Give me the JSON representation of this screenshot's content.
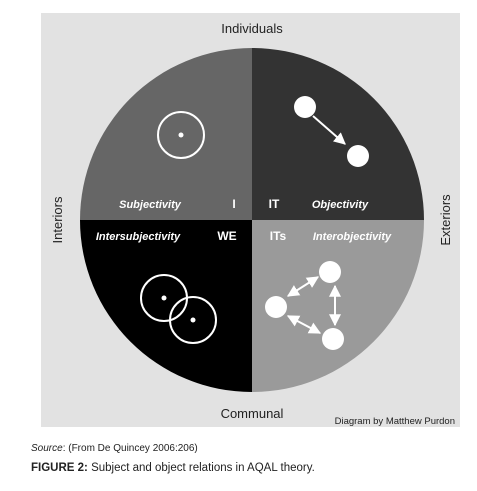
{
  "diagram": {
    "top_label": "Individuals",
    "bottom_label": "Communal",
    "left_label": "Interiors",
    "right_label": "Exteriors",
    "credit": "Diagram by Matthew Purdon",
    "colors": {
      "panel": "#e2e2e2",
      "upper_left": "#666666",
      "upper_right": "#333333",
      "lower_left": "#000000",
      "lower_right": "#9a9a9a",
      "marks": "#ffffff"
    },
    "quadrants": {
      "upper_left": {
        "title": "Subjectivity",
        "code": "I"
      },
      "upper_right": {
        "title": "Objectivity",
        "code": "IT"
      },
      "lower_left": {
        "title": "Intersubjectivity",
        "code": "WE"
      },
      "lower_right": {
        "title": "Interobjectivity",
        "code": "ITs"
      }
    }
  },
  "caption": {
    "source_label": "Source",
    "source_text": ": (From De Quincey 2006:206)",
    "figure_label": "FIGURE 2:",
    "figure_text": " Subject and object relations in AQAL theory."
  }
}
